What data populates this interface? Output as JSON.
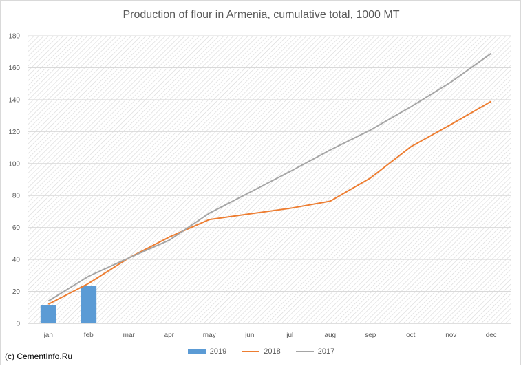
{
  "chart_data": {
    "type": "bar+line",
    "title": "Production of flour in Armenia, cumulative total, 1000 MT",
    "categories": [
      "jan",
      "feb",
      "mar",
      "apr",
      "may",
      "jun",
      "jul",
      "aug",
      "sep",
      "oct",
      "nov",
      "dec"
    ],
    "ylim": [
      0,
      180
    ],
    "yticks": [
      0,
      20,
      40,
      60,
      80,
      100,
      120,
      140,
      160,
      180
    ],
    "grid": true,
    "legend_position": "bottom",
    "series": [
      {
        "name": "2019",
        "kind": "bar",
        "color": "#5b9bd5",
        "values": [
          11.5,
          23.5,
          null,
          null,
          null,
          null,
          null,
          null,
          null,
          null,
          null,
          null
        ]
      },
      {
        "name": "2018",
        "kind": "line",
        "color": "#ed7d31",
        "values": [
          12,
          25,
          41,
          54,
          65,
          68.5,
          72,
          76.5,
          91,
          110.5,
          124.5,
          139
        ]
      },
      {
        "name": "2017",
        "kind": "line",
        "color": "#a5a5a5",
        "values": [
          14,
          29.5,
          41,
          52,
          69,
          82,
          95,
          108.5,
          121,
          135.5,
          151,
          169
        ]
      }
    ]
  },
  "footer": {
    "copyright": "(c) CementInfo.Ru"
  }
}
